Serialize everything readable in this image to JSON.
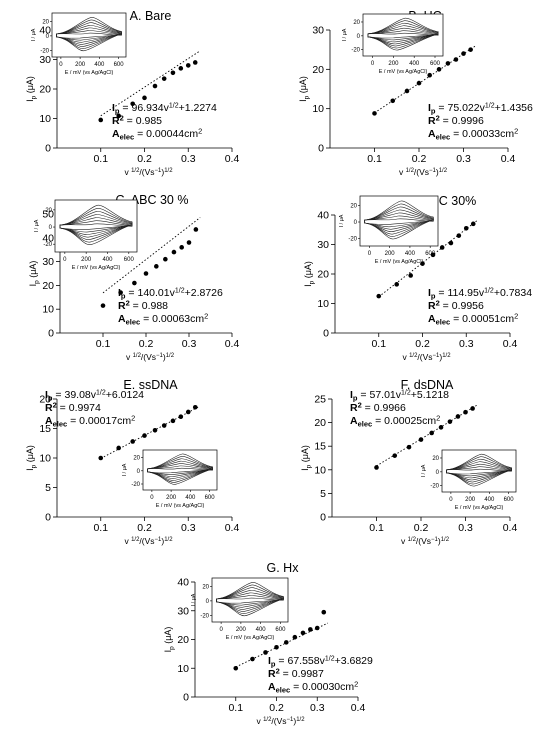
{
  "chart_data": [
    {
      "type": "scatter",
      "title": "A. Bare",
      "xlabel": "v 1/2/(Vs−1)1/2",
      "ylabel": "Ip (μA)",
      "xlim": [
        0.0,
        0.4
      ],
      "ylim": [
        0,
        40
      ],
      "xticks": [
        "0.1",
        "0.2",
        "0.3",
        "0.4"
      ],
      "yticks": [
        "0",
        "10",
        "20",
        "30",
        "40"
      ],
      "x": [
        0.1,
        0.141,
        0.173,
        0.2,
        0.224,
        0.245,
        0.265,
        0.283,
        0.3,
        0.316
      ],
      "y": [
        9.5,
        10.9,
        15.0,
        17.0,
        21.0,
        23.5,
        25.5,
        27.0,
        28.0,
        29.0
      ],
      "fit": {
        "slope": 96.934,
        "intercept": 1.2274
      },
      "annotation": {
        "eq_label": "Ip",
        "eq": " = 96.934v1/2+1.2274",
        "r2_label": "R2",
        "r2": " = 0.985",
        "area_label": "Aelec",
        "area": " = 0.00044cm2"
      },
      "inset": {
        "ylabel": "I / μA",
        "xlabel": "E / mV (vs Ag/AgCl)",
        "xticks": [
          "0",
          "200",
          "400",
          "600"
        ],
        "yticks": [
          "-20",
          "0",
          "20"
        ]
      }
    },
    {
      "type": "scatter",
      "title": "B. HC",
      "xlabel": "v 1/2/(Vs−1)1/2",
      "ylabel": "Ip (μA)",
      "xlim": [
        0.0,
        0.4
      ],
      "ylim": [
        0,
        30
      ],
      "xticks": [
        "0.1",
        "0.2",
        "0.3",
        "0.4"
      ],
      "yticks": [
        "0",
        "10",
        "20",
        "30"
      ],
      "x": [
        0.1,
        0.141,
        0.173,
        0.2,
        0.224,
        0.245,
        0.265,
        0.283,
        0.3,
        0.316
      ],
      "y": [
        8.8,
        12.0,
        14.5,
        16.5,
        18.5,
        20.0,
        21.5,
        22.5,
        24.0,
        25.0
      ],
      "fit": {
        "slope": 75.022,
        "intercept": 1.4356
      },
      "annotation": {
        "eq_label": "Ip",
        "eq": " = 75.022v1/2+1.4356",
        "r2_label": "R2",
        "r2": " = 0.9996",
        "area_label": "Aelec",
        "area": " = 0.00033cm2"
      },
      "inset": {
        "ylabel": "I / μA",
        "xlabel": "E / mV (vs Ag/AgCl)",
        "xticks": [
          "0",
          "200",
          "400",
          "600"
        ],
        "yticks": [
          "-20",
          "0",
          "20"
        ]
      }
    },
    {
      "type": "scatter",
      "title": "C. ABC 30 %",
      "xlabel": "v 1/2/(Vs−1)1/2",
      "ylabel": "Ip (μA)",
      "xlim": [
        0.0,
        0.4
      ],
      "ylim": [
        0,
        50
      ],
      "xticks": [
        "0.1",
        "0.2",
        "0.3",
        "0.4"
      ],
      "yticks": [
        "0",
        "10",
        "20",
        "30",
        "40",
        "50"
      ],
      "x": [
        0.1,
        0.141,
        0.173,
        0.2,
        0.224,
        0.245,
        0.265,
        0.283,
        0.3,
        0.316
      ],
      "y": [
        11.5,
        17.0,
        21.0,
        25.0,
        28.0,
        31.0,
        34.0,
        36.0,
        38.0,
        43.5
      ],
      "fit": {
        "slope": 140.01,
        "intercept": 2.8726
      },
      "annotation": {
        "eq_label": "Ip",
        "eq": " = 140.01v1/2+2.8726",
        "r2_label": "R2",
        "r2": " = 0.988",
        "area_label": "Aelec",
        "area": " = 0.00063cm2"
      },
      "inset": {
        "ylabel": "I / μA",
        "xlabel": "E / mV (vs Ag/AgCl)",
        "xticks": [
          "0",
          "200",
          "400",
          "600"
        ],
        "yticks": [
          "-20",
          "0",
          "20"
        ]
      }
    },
    {
      "type": "scatter",
      "title": "D. HC+ABC 30%",
      "xlabel": "v 1/2/(Vs−1)1/2",
      "ylabel": "Ip (μA)",
      "xlim": [
        0.0,
        0.4
      ],
      "ylim": [
        0,
        40
      ],
      "xticks": [
        "0.1",
        "0.2",
        "0.3",
        "0.4"
      ],
      "yticks": [
        "0",
        "10",
        "20",
        "30",
        "40"
      ],
      "x": [
        0.1,
        0.141,
        0.173,
        0.2,
        0.224,
        0.245,
        0.265,
        0.283,
        0.3,
        0.316
      ],
      "y": [
        12.5,
        16.5,
        19.5,
        23.5,
        26.5,
        29.0,
        30.5,
        33.0,
        35.5,
        37.0
      ],
      "fit": {
        "slope": 114.95,
        "intercept": 0.7834
      },
      "annotation": {
        "eq_label": "Ip",
        "eq": " = 114.95v1/2+0.7834",
        "r2_label": "R2",
        "r2": " = 0.9956",
        "area_label": "Aelec",
        "area": " = 0.00051cm2"
      },
      "inset": {
        "ylabel": "I / μA",
        "xlabel": "E / mV (vs Ag/AgCl)",
        "xticks": [
          "0",
          "200",
          "400",
          "600"
        ],
        "yticks": [
          "-20",
          "0",
          "20"
        ]
      }
    },
    {
      "type": "scatter",
      "title": "E. ssDNA",
      "xlabel": "v 1/2/(Vs−1)1/2",
      "ylabel": "Ip (μA)",
      "xlim": [
        0.0,
        0.4
      ],
      "ylim": [
        0,
        20
      ],
      "xticks": [
        "0.1",
        "0.2",
        "0.3",
        "0.4"
      ],
      "yticks": [
        "0",
        "5",
        "10",
        "15",
        "20"
      ],
      "x": [
        0.1,
        0.141,
        0.173,
        0.2,
        0.224,
        0.245,
        0.265,
        0.283,
        0.3,
        0.316
      ],
      "y": [
        10.0,
        11.7,
        12.8,
        13.8,
        14.7,
        15.5,
        16.3,
        17.0,
        17.8,
        18.6
      ],
      "fit": {
        "slope": 39.08,
        "intercept": 6.0124
      },
      "annotation": {
        "eq_label": "Ip",
        "eq": " = 39.08v1/2+6.0124",
        "r2_label": "R2",
        "r2": " = 0.9974",
        "area_label": "Aelec",
        "area": " = 0.00017cm2"
      },
      "inset": {
        "ylabel": "I / μA",
        "xlabel": "E / mV (vs Ag/AgCl)",
        "xticks": [
          "0",
          "200",
          "400",
          "600"
        ],
        "yticks": [
          "-20",
          "0",
          "20"
        ]
      }
    },
    {
      "type": "scatter",
      "title": "F. dsDNA",
      "xlabel": "v 1/2/(Vs−1)1/2",
      "ylabel": "Ip (μA)",
      "xlim": [
        0.0,
        0.4
      ],
      "ylim": [
        0,
        25
      ],
      "xticks": [
        "0.1",
        "0.2",
        "0.3",
        "0.4"
      ],
      "yticks": [
        "0",
        "5",
        "10",
        "15",
        "20",
        "25"
      ],
      "x": [
        0.1,
        0.141,
        0.173,
        0.2,
        0.224,
        0.245,
        0.265,
        0.283,
        0.3,
        0.316
      ],
      "y": [
        10.5,
        13.0,
        14.8,
        16.4,
        17.8,
        19.0,
        20.2,
        21.3,
        22.2,
        23.0
      ],
      "fit": {
        "slope": 57.01,
        "intercept": 5.1218
      },
      "annotation": {
        "eq_label": "Ip",
        "eq": " = 57.01v1/2+5.1218",
        "r2_label": "R2",
        "r2": " = 0.9966",
        "area_label": "Aelec",
        "area": " = 0.00025cm2"
      },
      "inset": {
        "ylabel": "I / μA",
        "xlabel": "E / mV (vs Ag/AgCl)",
        "xticks": [
          "0",
          "200",
          "400",
          "600"
        ],
        "yticks": [
          "-20",
          "0",
          "20"
        ]
      }
    },
    {
      "type": "scatter",
      "title": "G. Hx",
      "xlabel": "v 1/2/(Vs−1)1/2",
      "ylabel": "Ip (μA)",
      "xlim": [
        0.0,
        0.4
      ],
      "ylim": [
        0,
        40
      ],
      "xticks": [
        "0.1",
        "0.2",
        "0.3",
        "0.4"
      ],
      "yticks": [
        "0",
        "10",
        "20",
        "30",
        "40"
      ],
      "x": [
        0.1,
        0.141,
        0.173,
        0.2,
        0.224,
        0.245,
        0.265,
        0.283,
        0.3,
        0.316
      ],
      "y": [
        10.0,
        13.2,
        15.5,
        17.3,
        19.0,
        20.8,
        22.3,
        23.5,
        24.0,
        29.5
      ],
      "fit": {
        "slope": 67.558,
        "intercept": 3.6829
      },
      "annotation": {
        "eq_label": "Ip",
        "eq": " = 67.558v1/2+3.6829",
        "r2_label": "R2",
        "r2": " = 0.9987",
        "area_label": "Aelec",
        "area": " = 0.00030cm2"
      },
      "inset": {
        "ylabel": "I / μA",
        "xlabel": "E / mV (vs Ag/AgCl)",
        "xticks": [
          "0",
          "200",
          "400",
          "600"
        ],
        "yticks": [
          "-20",
          "0",
          "20"
        ]
      }
    }
  ]
}
